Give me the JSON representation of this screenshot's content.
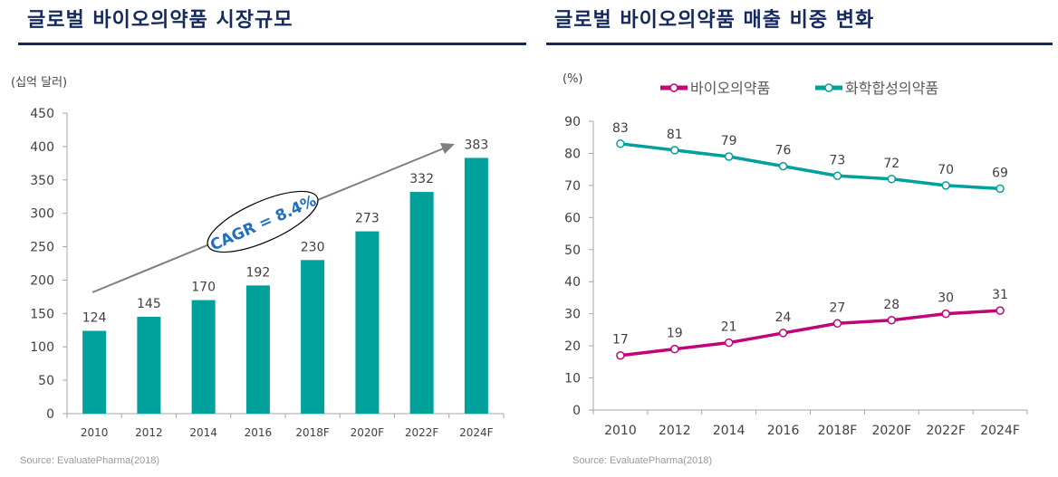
{
  "left": {
    "title": "글로벌 바이오의약품 시장규모",
    "source": "Source:  EvaluatePharma(2018)",
    "annotation": "CAGR = 8.4%"
  },
  "right": {
    "title": "글로벌 바이오의약품 매출 비중 변화",
    "source": "Source:  EvaluatePharma(2018)"
  },
  "chart_data": [
    {
      "type": "bar",
      "ylabel": "(십억 달러)",
      "categories": [
        "2010",
        "2012",
        "2014",
        "2016",
        "2018F",
        "2020F",
        "2022F",
        "2024F"
      ],
      "values": [
        124,
        145,
        170,
        192,
        230,
        273,
        332,
        383
      ],
      "ylim": [
        0,
        450
      ],
      "yticks": [
        0,
        50,
        100,
        150,
        200,
        250,
        300,
        350,
        400,
        450
      ],
      "color": "#00a19a",
      "grid": false
    },
    {
      "type": "line",
      "ylabel": "(%)",
      "categories": [
        "2010",
        "2012",
        "2014",
        "2016",
        "2018F",
        "2020F",
        "2022F",
        "2024F"
      ],
      "ylim": [
        0,
        90
      ],
      "yticks": [
        0,
        10,
        20,
        30,
        40,
        50,
        60,
        70,
        80,
        90
      ],
      "legend": "top",
      "grid": false,
      "series": [
        {
          "name": "바이오의약품",
          "values": [
            17,
            19,
            21,
            24,
            27,
            28,
            30,
            31
          ],
          "color": "#c0047a"
        },
        {
          "name": "화학합성의약품",
          "values": [
            83,
            81,
            79,
            76,
            73,
            72,
            70,
            69
          ],
          "color": "#00a19a"
        }
      ]
    }
  ]
}
